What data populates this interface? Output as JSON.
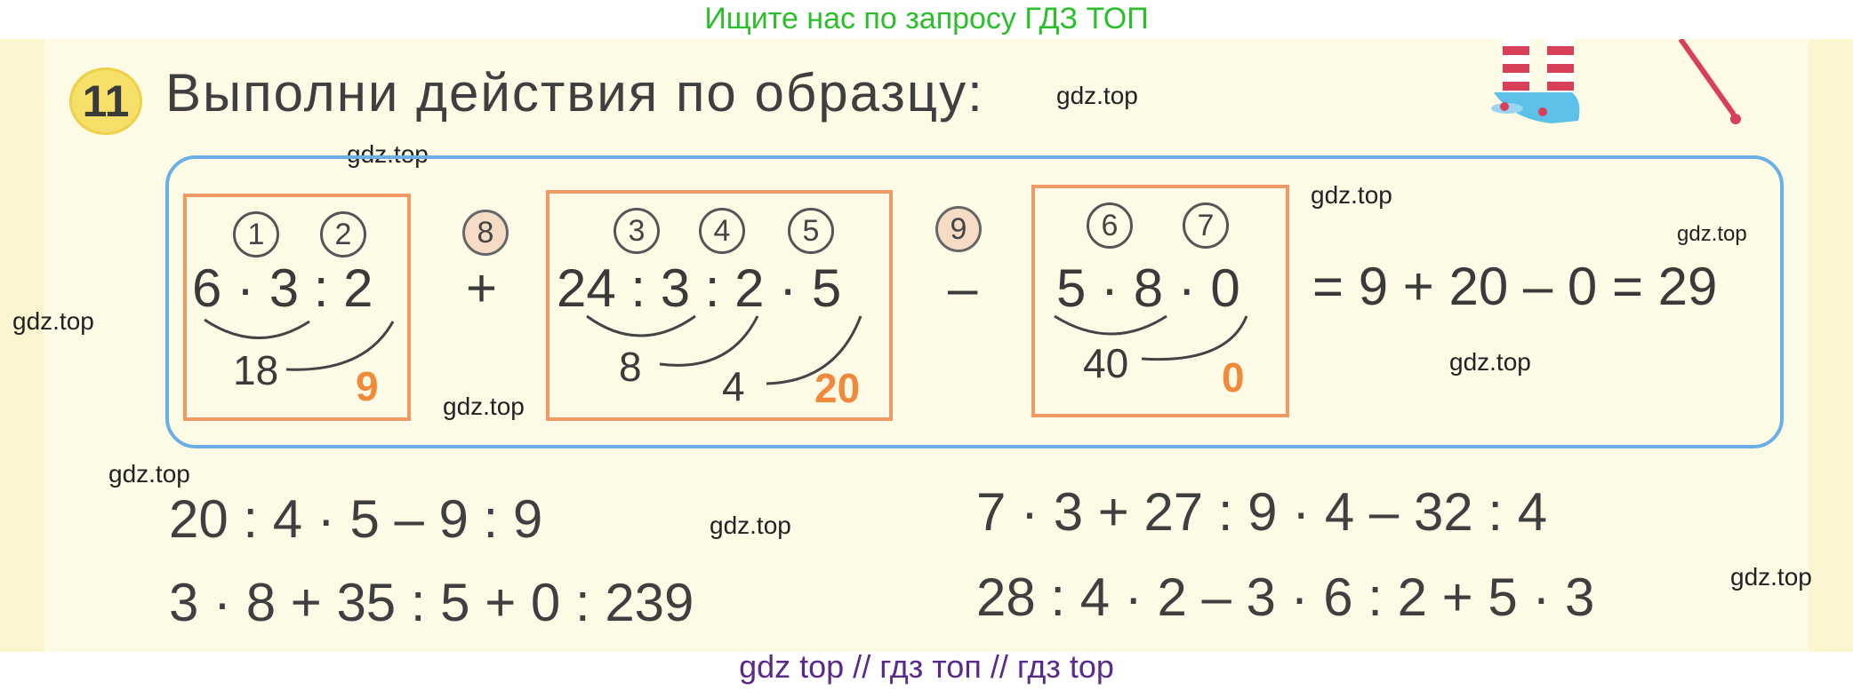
{
  "banner_top": "Ищите нас по запросу ГДЗ ТОП",
  "banner_bottom": "gdz top  //  гдз топ  //  гдз top",
  "exercise": {
    "number": "11",
    "title": "Выполни действия по образцу:"
  },
  "watermark": "gdz.top",
  "example": {
    "box1": {
      "marks": [
        "1",
        "2"
      ],
      "expression": "6 · 3 : 2",
      "intermediate": "18",
      "result": "9"
    },
    "op1": "+",
    "mark8": "8",
    "box2": {
      "marks": [
        "3",
        "4",
        "5"
      ],
      "expression": "24 : 3 : 2 · 5",
      "intermediate1": "8",
      "intermediate2": "4",
      "result": "20"
    },
    "op2": "–",
    "mark9": "9",
    "box3": {
      "marks": [
        "6",
        "7"
      ],
      "expression": "5 · 8 · 0",
      "intermediate": "40",
      "result": "0"
    },
    "final": "= 9 + 20 – 0 = 29"
  },
  "tasks": [
    "20 : 4 · 5 – 9 : 9",
    "7 · 3 + 27 : 9 · 4 – 32 : 4",
    "3 · 8 + 35 : 5 + 0 : 239",
    "28 : 4 · 2 – 3 · 6 : 2 + 5 · 3"
  ],
  "colors": {
    "orange_box": "#ef9a64",
    "blue_box": "#6ab0e6",
    "result_orange": "#f08a3a",
    "banner_green": "#2bbf2b",
    "banner_purple": "#5a2a8a"
  }
}
